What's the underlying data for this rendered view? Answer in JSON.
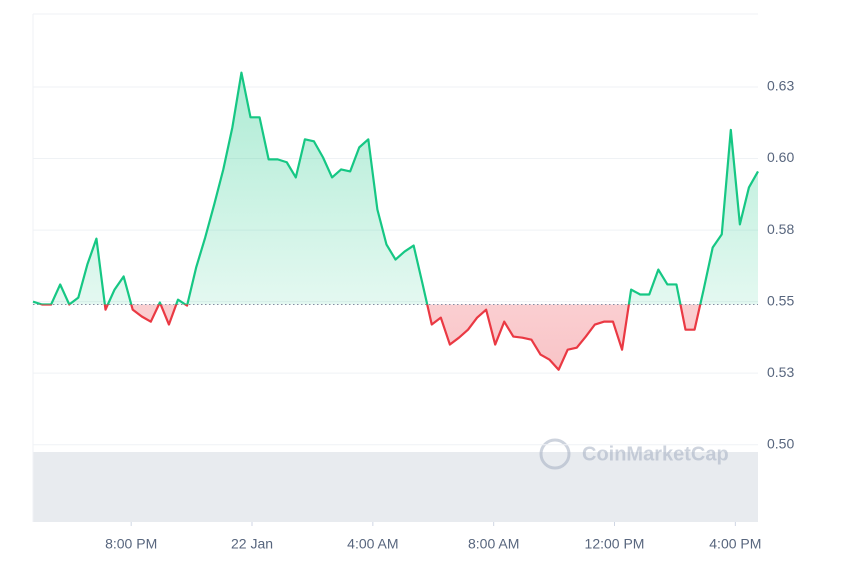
{
  "chart_data": {
    "type": "line",
    "watermark": "CoinMarketCap",
    "x": [
      16.75,
      17.05,
      17.35,
      17.65,
      17.95,
      18.25,
      18.55,
      18.85,
      19.15,
      19.45,
      19.75,
      20.05,
      20.35,
      20.65,
      20.95,
      21.25,
      21.55,
      21.85,
      22.15,
      22.45,
      22.75,
      23.05,
      23.35,
      23.65,
      23.95,
      24.25,
      24.55,
      24.85,
      25.15,
      25.45,
      25.75,
      26.05,
      26.35,
      26.65,
      26.95,
      27.25,
      27.55,
      27.85,
      28.15,
      28.45,
      28.75,
      29.05,
      29.35,
      29.65,
      29.95,
      30.25,
      30.55,
      30.85,
      31.15,
      31.45,
      31.75,
      32.05,
      32.35,
      32.65,
      32.95,
      33.25,
      33.55,
      33.85,
      34.15,
      34.45,
      34.75,
      35.05,
      35.35,
      35.65,
      35.95,
      36.25,
      36.55,
      36.85,
      37.15,
      37.45,
      37.75,
      38.05,
      38.35,
      38.65,
      38.95,
      39.25,
      39.55,
      39.85,
      40.15,
      40.45,
      40.75
    ],
    "values": [
      0.55,
      0.549,
      0.549,
      0.556,
      0.549,
      0.5514,
      0.563,
      0.572,
      0.5472,
      0.5542,
      0.5588,
      0.5472,
      0.5448,
      0.543,
      0.5497,
      0.542,
      0.5507,
      0.5486,
      0.5619,
      0.5724,
      0.584,
      0.5962,
      0.6109,
      0.63,
      0.6144,
      0.6144,
      0.5997,
      0.5997,
      0.5987,
      0.5934,
      0.6067,
      0.606,
      0.6004,
      0.5934,
      0.5962,
      0.5955,
      0.6039,
      0.6067,
      0.5822,
      0.57,
      0.5647,
      0.5675,
      0.5696,
      0.556,
      0.542,
      0.5444,
      0.535,
      0.5374,
      0.5402,
      0.5444,
      0.5472,
      0.535,
      0.543,
      0.5378,
      0.5374,
      0.5367,
      0.5315,
      0.5297,
      0.5262,
      0.5332,
      0.5339,
      0.5378,
      0.542,
      0.543,
      0.543,
      0.5332,
      0.5542,
      0.5525,
      0.5525,
      0.5612,
      0.556,
      0.556,
      0.5402,
      0.5402,
      0.5542,
      0.5689,
      0.5735,
      0.61,
      0.577,
      0.5899,
      0.5955
    ],
    "baseline": 0.549,
    "up_color": "#16c784",
    "down_color": "#ea3943",
    "xlim": [
      16.75,
      40.75
    ],
    "xticks": [
      {
        "value": 20,
        "label": "8:00 PM"
      },
      {
        "value": 24,
        "label": "22 Jan"
      },
      {
        "value": 28,
        "label": "4:00 AM"
      },
      {
        "value": 32,
        "label": "8:00 AM"
      },
      {
        "value": 36,
        "label": "12:00 PM"
      },
      {
        "value": 40,
        "label": "4:00 PM"
      }
    ],
    "ylim": [
      0.473,
      0.6505
    ],
    "yticks": [
      {
        "value": 0.5,
        "label": "0.50"
      },
      {
        "value": 0.525,
        "label": "0.53"
      },
      0.55,
      {
        "value": 0.575,
        "label": "0.58"
      },
      {
        "value": 0.6,
        "label": "0.60"
      },
      {
        "value": 0.625,
        "label": "0.63"
      }
    ],
    "grid": true
  }
}
